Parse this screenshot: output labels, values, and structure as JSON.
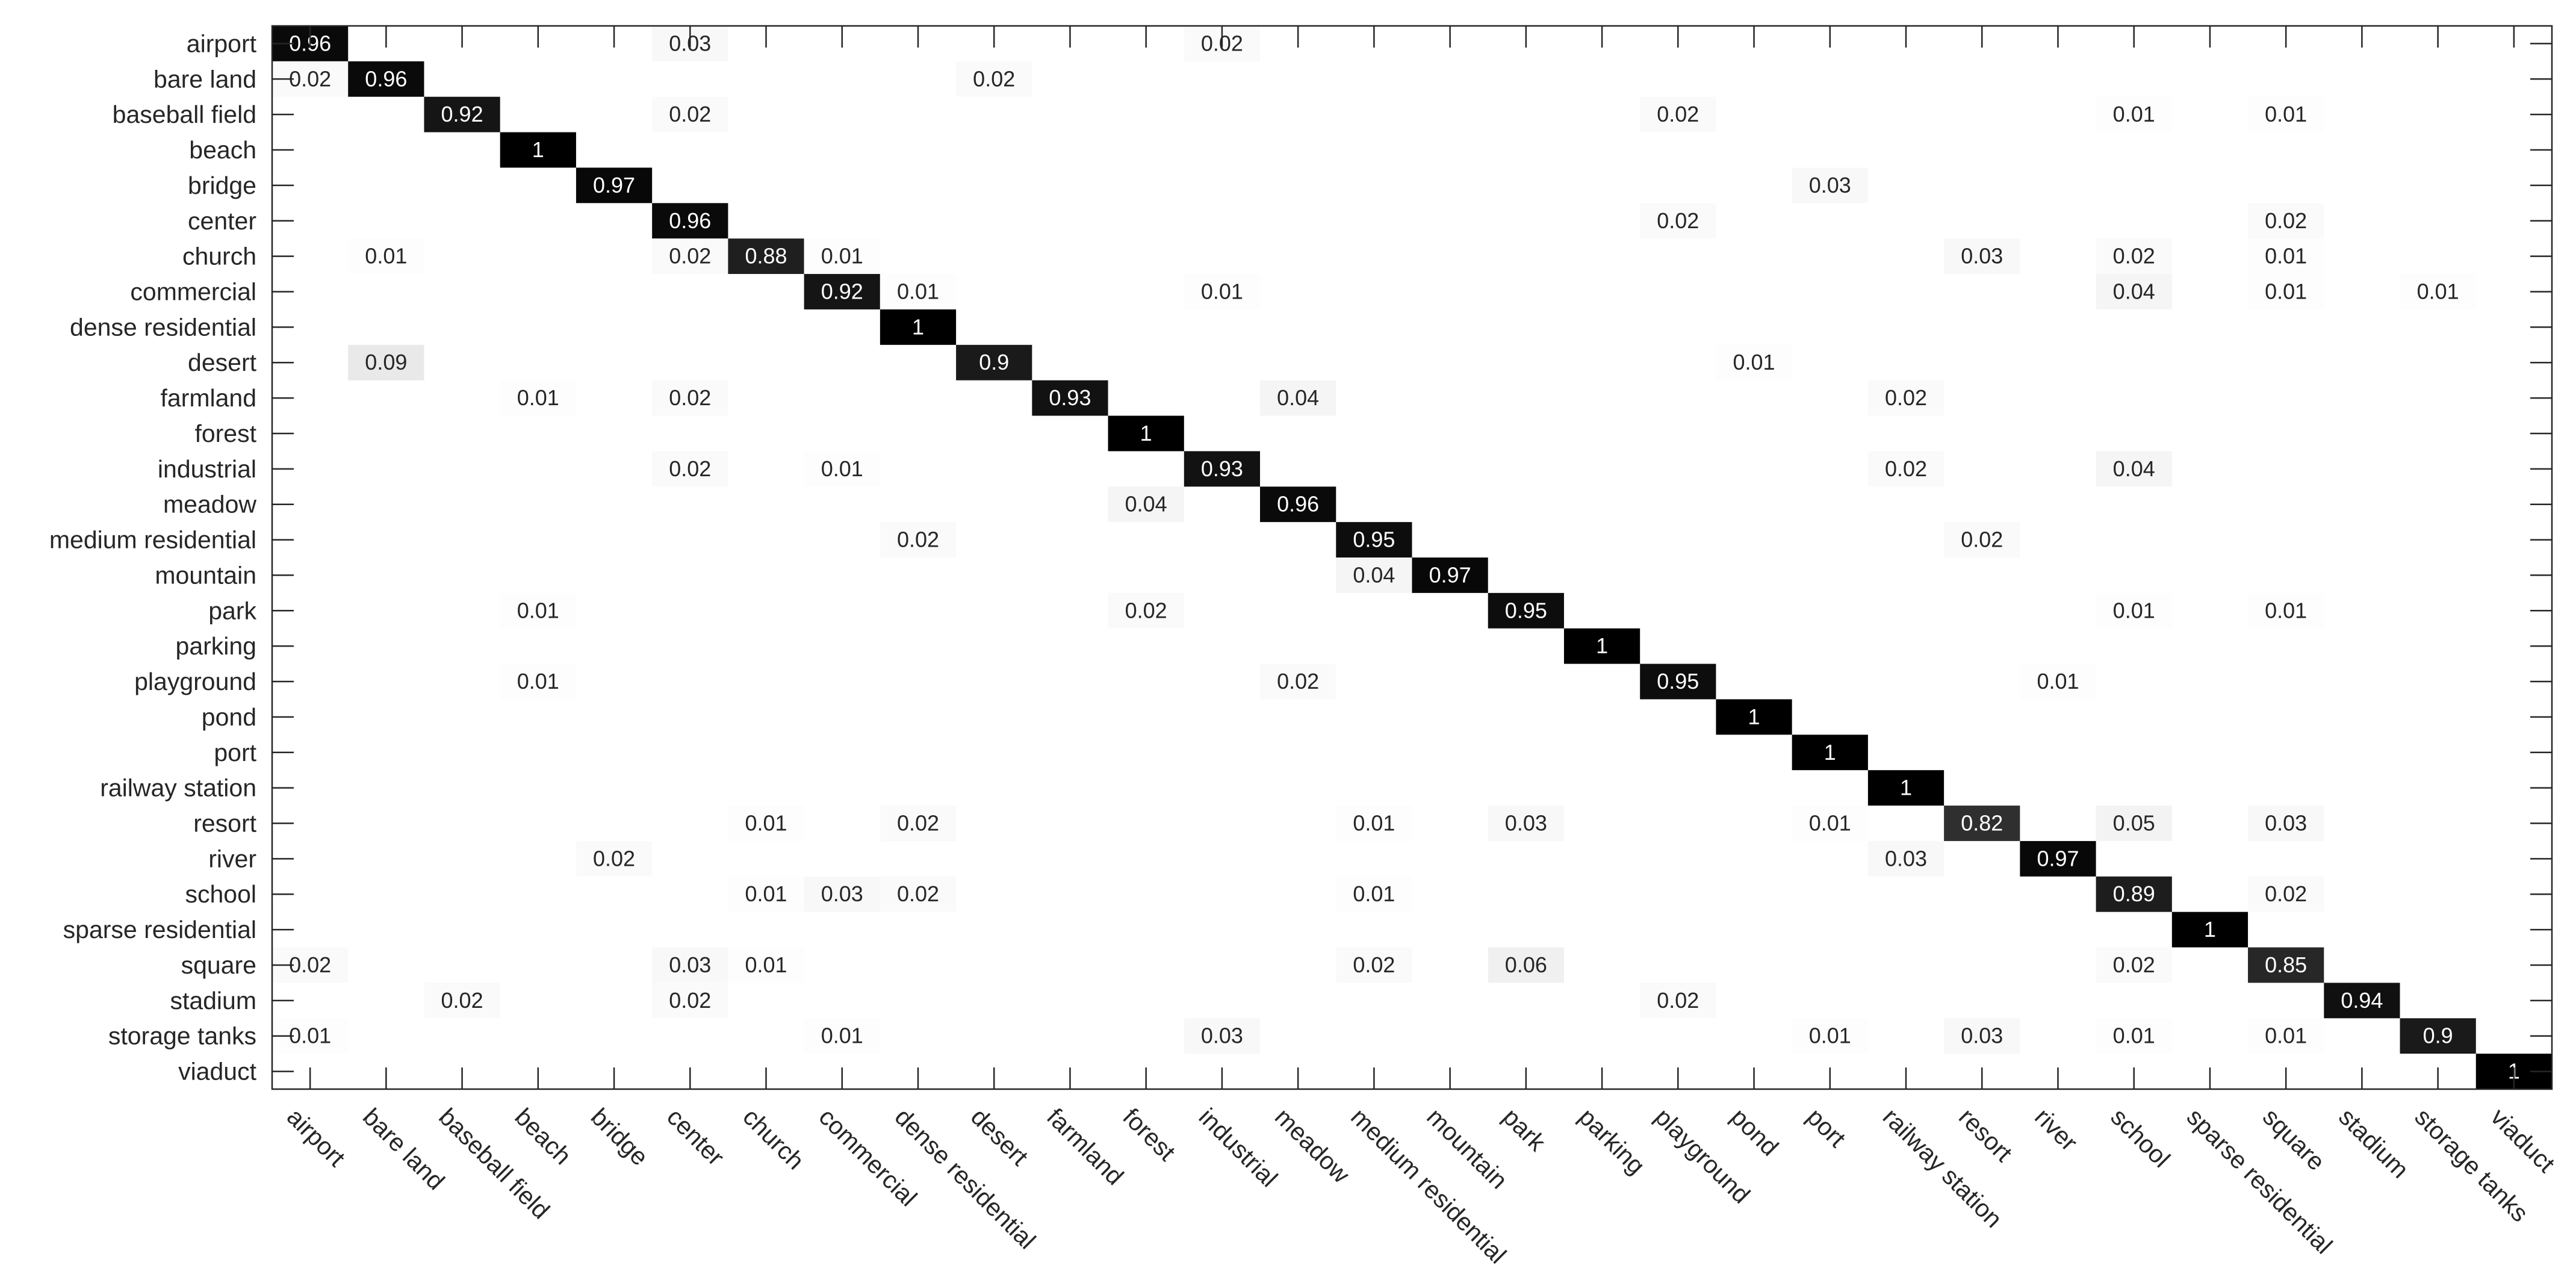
{
  "chart_data": {
    "type": "heatmap",
    "title": "",
    "xlabel": "",
    "ylabel": "",
    "colormap": "gray-inverted",
    "colors": {
      "high": "#000000",
      "low": "#ffffff",
      "axis": "#262626"
    },
    "rows": [
      "airport",
      "bare land",
      "baseball field",
      "beach",
      "bridge",
      "center",
      "church",
      "commercial",
      "dense residential",
      "desert",
      "farmland",
      "forest",
      "industrial",
      "meadow",
      "medium residential",
      "mountain",
      "park",
      "parking",
      "playground",
      "pond",
      "port",
      "railway station",
      "resort",
      "river",
      "school",
      "sparse residential",
      "square",
      "stadium",
      "storage tanks",
      "viaduct"
    ],
    "columns": [
      "airport",
      "bare land",
      "baseball field",
      "beach",
      "bridge",
      "center",
      "church",
      "commercial",
      "dense residential",
      "desert",
      "farmland",
      "forest",
      "industrial",
      "meadow",
      "medium residential",
      "mountain",
      "park",
      "parking",
      "playground",
      "pond",
      "port",
      "railway station",
      "resort",
      "river",
      "school",
      "sparse residential",
      "square",
      "stadium",
      "storage tanks",
      "viaduct"
    ],
    "cells": [
      {
        "row": 0,
        "col": 0,
        "label": "0.96"
      },
      {
        "row": 0,
        "col": 5,
        "label": "0.03"
      },
      {
        "row": 0,
        "col": 12,
        "label": "0.02"
      },
      {
        "row": 1,
        "col": 0,
        "label": "0.02"
      },
      {
        "row": 1,
        "col": 1,
        "label": "0.96"
      },
      {
        "row": 1,
        "col": 9,
        "label": "0.02"
      },
      {
        "row": 2,
        "col": 2,
        "label": "0.92"
      },
      {
        "row": 2,
        "col": 5,
        "label": "0.02"
      },
      {
        "row": 2,
        "col": 18,
        "label": "0.02"
      },
      {
        "row": 2,
        "col": 24,
        "label": "0.01"
      },
      {
        "row": 2,
        "col": 26,
        "label": "0.01"
      },
      {
        "row": 3,
        "col": 3,
        "label": "1"
      },
      {
        "row": 4,
        "col": 4,
        "label": "0.97"
      },
      {
        "row": 4,
        "col": 20,
        "label": "0.03"
      },
      {
        "row": 5,
        "col": 5,
        "label": "0.96"
      },
      {
        "row": 5,
        "col": 18,
        "label": "0.02"
      },
      {
        "row": 5,
        "col": 26,
        "label": "0.02"
      },
      {
        "row": 6,
        "col": 1,
        "label": "0.01"
      },
      {
        "row": 6,
        "col": 5,
        "label": "0.02"
      },
      {
        "row": 6,
        "col": 6,
        "label": "0.88"
      },
      {
        "row": 6,
        "col": 7,
        "label": "0.01"
      },
      {
        "row": 6,
        "col": 22,
        "label": "0.03"
      },
      {
        "row": 6,
        "col": 24,
        "label": "0.02"
      },
      {
        "row": 6,
        "col": 26,
        "label": "0.01"
      },
      {
        "row": 7,
        "col": 7,
        "label": "0.92"
      },
      {
        "row": 7,
        "col": 8,
        "label": "0.01"
      },
      {
        "row": 7,
        "col": 12,
        "label": "0.01"
      },
      {
        "row": 7,
        "col": 24,
        "label": "0.04"
      },
      {
        "row": 7,
        "col": 26,
        "label": "0.01"
      },
      {
        "row": 7,
        "col": 28,
        "label": "0.01"
      },
      {
        "row": 8,
        "col": 8,
        "label": "1"
      },
      {
        "row": 9,
        "col": 1,
        "label": "0.09"
      },
      {
        "row": 9,
        "col": 9,
        "label": "0.9"
      },
      {
        "row": 9,
        "col": 19,
        "label": "0.01"
      },
      {
        "row": 10,
        "col": 3,
        "label": "0.01"
      },
      {
        "row": 10,
        "col": 5,
        "label": "0.02"
      },
      {
        "row": 10,
        "col": 10,
        "label": "0.93"
      },
      {
        "row": 10,
        "col": 13,
        "label": "0.04"
      },
      {
        "row": 10,
        "col": 21,
        "label": "0.02"
      },
      {
        "row": 11,
        "col": 11,
        "label": "1"
      },
      {
        "row": 12,
        "col": 5,
        "label": "0.02"
      },
      {
        "row": 12,
        "col": 7,
        "label": "0.01"
      },
      {
        "row": 12,
        "col": 12,
        "label": "0.93"
      },
      {
        "row": 12,
        "col": 21,
        "label": "0.02"
      },
      {
        "row": 12,
        "col": 24,
        "label": "0.04"
      },
      {
        "row": 13,
        "col": 11,
        "label": "0.04"
      },
      {
        "row": 13,
        "col": 13,
        "label": "0.96"
      },
      {
        "row": 14,
        "col": 8,
        "label": "0.02"
      },
      {
        "row": 14,
        "col": 14,
        "label": "0.95"
      },
      {
        "row": 14,
        "col": 22,
        "label": "0.02"
      },
      {
        "row": 15,
        "col": 14,
        "label": "0.04"
      },
      {
        "row": 15,
        "col": 15,
        "label": "0.97"
      },
      {
        "row": 16,
        "col": 3,
        "label": "0.01"
      },
      {
        "row": 16,
        "col": 11,
        "label": "0.02"
      },
      {
        "row": 16,
        "col": 16,
        "label": "0.95"
      },
      {
        "row": 16,
        "col": 24,
        "label": "0.01"
      },
      {
        "row": 16,
        "col": 26,
        "label": "0.01"
      },
      {
        "row": 17,
        "col": 17,
        "label": "1"
      },
      {
        "row": 18,
        "col": 3,
        "label": "0.01"
      },
      {
        "row": 18,
        "col": 13,
        "label": "0.02"
      },
      {
        "row": 18,
        "col": 18,
        "label": "0.95"
      },
      {
        "row": 18,
        "col": 23,
        "label": "0.01"
      },
      {
        "row": 19,
        "col": 19,
        "label": "1"
      },
      {
        "row": 20,
        "col": 20,
        "label": "1"
      },
      {
        "row": 21,
        "col": 21,
        "label": "1"
      },
      {
        "row": 22,
        "col": 6,
        "label": "0.01"
      },
      {
        "row": 22,
        "col": 8,
        "label": "0.02"
      },
      {
        "row": 22,
        "col": 14,
        "label": "0.01"
      },
      {
        "row": 22,
        "col": 16,
        "label": "0.03"
      },
      {
        "row": 22,
        "col": 20,
        "label": "0.01"
      },
      {
        "row": 22,
        "col": 22,
        "label": "0.82"
      },
      {
        "row": 22,
        "col": 24,
        "label": "0.05"
      },
      {
        "row": 22,
        "col": 26,
        "label": "0.03"
      },
      {
        "row": 23,
        "col": 4,
        "label": "0.02"
      },
      {
        "row": 23,
        "col": 21,
        "label": "0.03"
      },
      {
        "row": 23,
        "col": 23,
        "label": "0.97"
      },
      {
        "row": 24,
        "col": 6,
        "label": "0.01"
      },
      {
        "row": 24,
        "col": 7,
        "label": "0.03"
      },
      {
        "row": 24,
        "col": 8,
        "label": "0.02"
      },
      {
        "row": 24,
        "col": 14,
        "label": "0.01"
      },
      {
        "row": 24,
        "col": 24,
        "label": "0.89"
      },
      {
        "row": 24,
        "col": 26,
        "label": "0.02"
      },
      {
        "row": 25,
        "col": 25,
        "label": "1"
      },
      {
        "row": 26,
        "col": 0,
        "label": "0.02"
      },
      {
        "row": 26,
        "col": 5,
        "label": "0.03"
      },
      {
        "row": 26,
        "col": 6,
        "label": "0.01"
      },
      {
        "row": 26,
        "col": 14,
        "label": "0.02"
      },
      {
        "row": 26,
        "col": 16,
        "label": "0.06"
      },
      {
        "row": 26,
        "col": 24,
        "label": "0.02"
      },
      {
        "row": 26,
        "col": 26,
        "label": "0.85"
      },
      {
        "row": 27,
        "col": 2,
        "label": "0.02"
      },
      {
        "row": 27,
        "col": 5,
        "label": "0.02"
      },
      {
        "row": 27,
        "col": 18,
        "label": "0.02"
      },
      {
        "row": 27,
        "col": 27,
        "label": "0.94"
      },
      {
        "row": 28,
        "col": 0,
        "label": "0.01"
      },
      {
        "row": 28,
        "col": 7,
        "label": "0.01"
      },
      {
        "row": 28,
        "col": 12,
        "label": "0.03"
      },
      {
        "row": 28,
        "col": 20,
        "label": "0.01"
      },
      {
        "row": 28,
        "col": 22,
        "label": "0.03"
      },
      {
        "row": 28,
        "col": 24,
        "label": "0.01"
      },
      {
        "row": 28,
        "col": 26,
        "label": "0.01"
      },
      {
        "row": 28,
        "col": 28,
        "label": "0.9"
      },
      {
        "row": 29,
        "col": 29,
        "label": "1"
      }
    ]
  }
}
